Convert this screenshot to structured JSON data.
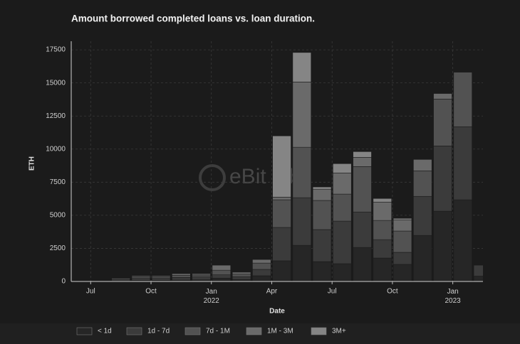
{
  "chart_data": {
    "type": "stacked-bar",
    "title": "Amount borrowed completed loans vs. loan duration.",
    "watermark": "eBit labs",
    "x_label": "Date",
    "y_label": "ETH",
    "x": [
      "2021-08",
      "2021-09",
      "2021-10",
      "2021-11",
      "2021-12",
      "2022-01",
      "2022-02",
      "2022-03",
      "2022-04",
      "2022-05",
      "2022-06",
      "2022-07",
      "2022-08",
      "2022-09",
      "2022-10",
      "2022-11",
      "2022-12",
      "2023-01",
      "2023-02"
    ],
    "series": [
      {
        "name": "< 1d",
        "color": "#262626",
        "values": [
          50,
          80,
          80,
          100,
          120,
          250,
          150,
          430,
          1560,
          2730,
          1500,
          1340,
          2570,
          1770,
          1290,
          3480,
          5310,
          6170,
          400
        ]
      },
      {
        "name": "1d - 7d",
        "color": "#3b3b3b",
        "values": [
          100,
          150,
          150,
          200,
          220,
          250,
          200,
          480,
          2520,
          3600,
          2420,
          3220,
          2680,
          1390,
          910,
          2950,
          4930,
          5520,
          830
        ]
      },
      {
        "name": "7d - 1M",
        "color": "#525252",
        "values": [
          80,
          120,
          120,
          170,
          150,
          350,
          200,
          480,
          2090,
          3810,
          2200,
          2040,
          3430,
          1450,
          1610,
          1930,
          3540,
          4120,
          0
        ]
      },
      {
        "name": "1M - 3M",
        "color": "#6a6a6a",
        "values": [
          40,
          80,
          80,
          120,
          100,
          380,
          150,
          270,
          200,
          4930,
          850,
          1600,
          700,
          1390,
          850,
          860,
          420,
          0,
          0
        ]
      },
      {
        "name": "3M+",
        "color": "#858585",
        "values": [
          0,
          0,
          0,
          0,
          0,
          0,
          0,
          0,
          4630,
          2230,
          170,
          700,
          430,
          270,
          110,
          0,
          0,
          0,
          0
        ]
      }
    ],
    "xlim": [
      "2021-06-02",
      "2023-02-16"
    ],
    "xticks": [
      {
        "value": "2021-07-01",
        "label": "Jul"
      },
      {
        "value": "2021-10-01",
        "label": "Oct"
      },
      {
        "value": "2022-01-01",
        "label": "Jan\n2022"
      },
      {
        "value": "2022-04-01",
        "label": "Apr"
      },
      {
        "value": "2022-07-01",
        "label": "Jul"
      },
      {
        "value": "2022-10-01",
        "label": "Oct"
      },
      {
        "value": "2023-01-01",
        "label": "Jan\n2023"
      }
    ],
    "ylim": [
      0,
      18150
    ],
    "yticks": [
      0,
      2500,
      5000,
      7500,
      10000,
      12500,
      15000,
      17500
    ],
    "grid": true,
    "legend": "bottom"
  }
}
